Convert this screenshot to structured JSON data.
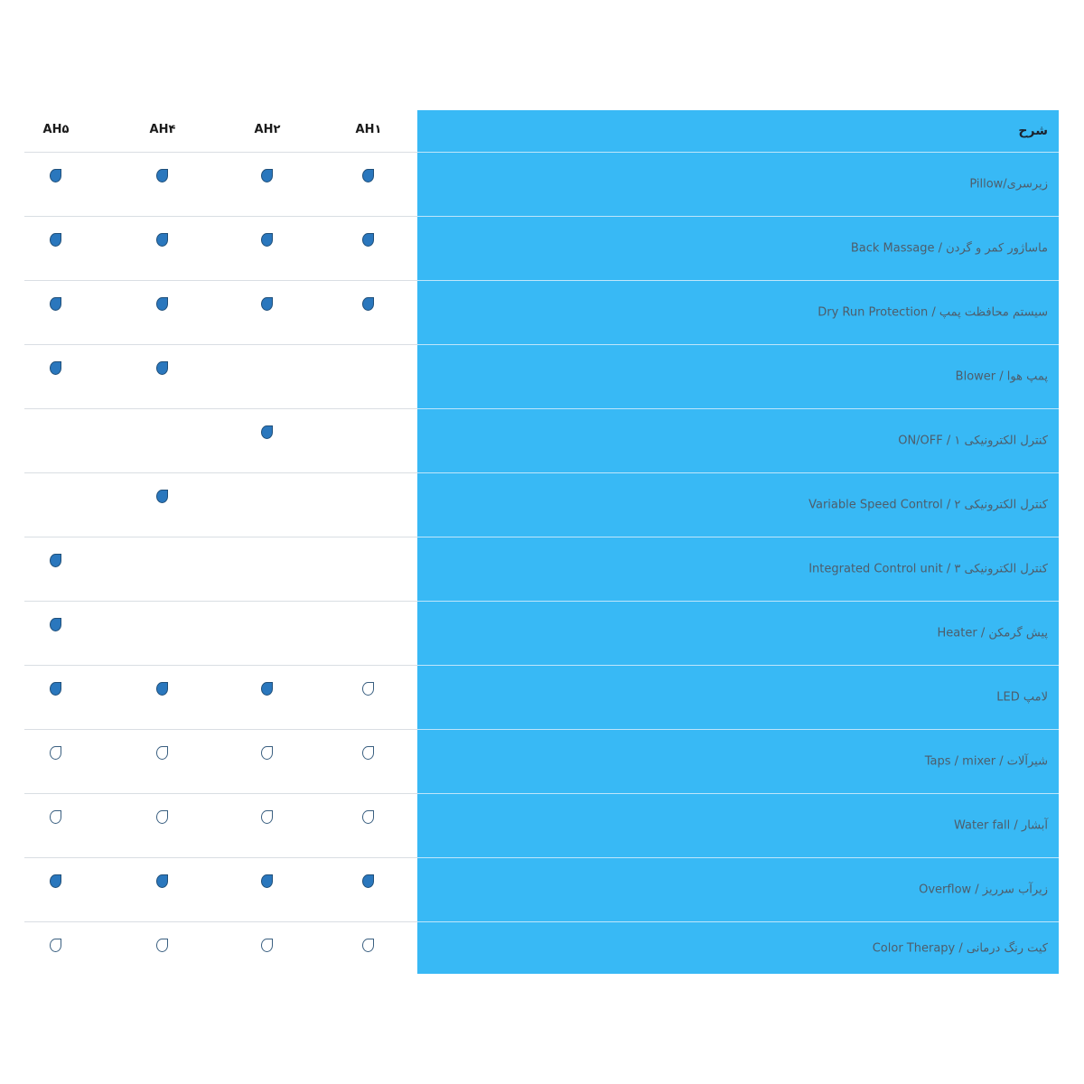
{
  "header": {
    "description_label": "شرح",
    "models": [
      "AH۵",
      "AH۴",
      "AH۲",
      "AH۱"
    ]
  },
  "colors": {
    "description_bg": "#38b9f5",
    "filled_icon": "#2a77bd"
  },
  "legend": {
    "filled": "drop-filled-icon",
    "outline": "drop-outline-icon"
  },
  "rows": [
    {
      "label": "زیرسری/Pillow",
      "values": [
        "filled",
        "filled",
        "filled",
        "filled"
      ]
    },
    {
      "label": "ماساژور کمر و گردن / Back Massage",
      "values": [
        "filled",
        "filled",
        "filled",
        "filled"
      ]
    },
    {
      "label": "سیستم محافظت پمپ / Dry Run Protection",
      "values": [
        "filled",
        "filled",
        "filled",
        "filled"
      ]
    },
    {
      "label": "پمپ هوا / Blower",
      "values": [
        "filled",
        "filled",
        "none",
        "none"
      ]
    },
    {
      "label": "کنترل الکترونیکی ۱ / ON/OFF",
      "values": [
        "none",
        "none",
        "filled",
        "none"
      ]
    },
    {
      "label": "کنترل الکترونیکی ۲ / Variable Speed Control",
      "values": [
        "none",
        "filled",
        "none",
        "none"
      ]
    },
    {
      "label": "کنترل الکترونیکی ۳ / Integrated Control unit",
      "values": [
        "filled",
        "none",
        "none",
        "none"
      ]
    },
    {
      "label": "پیش گرمکن / Heater",
      "values": [
        "filled",
        "none",
        "none",
        "none"
      ]
    },
    {
      "label": "لامپ LED",
      "values": [
        "filled",
        "filled",
        "filled",
        "outline"
      ]
    },
    {
      "label": "شیرآلات / Taps / mixer",
      "values": [
        "outline",
        "outline",
        "outline",
        "outline"
      ]
    },
    {
      "label": "آبشار / Water fall",
      "values": [
        "outline",
        "outline",
        "outline",
        "outline"
      ]
    },
    {
      "label": "زیرآب سرریز / Overflow",
      "values": [
        "filled",
        "filled",
        "filled",
        "filled"
      ]
    },
    {
      "label": "کیت رنگ درمانی / Color Therapy",
      "values": [
        "outline",
        "outline",
        "outline",
        "outline"
      ]
    }
  ]
}
